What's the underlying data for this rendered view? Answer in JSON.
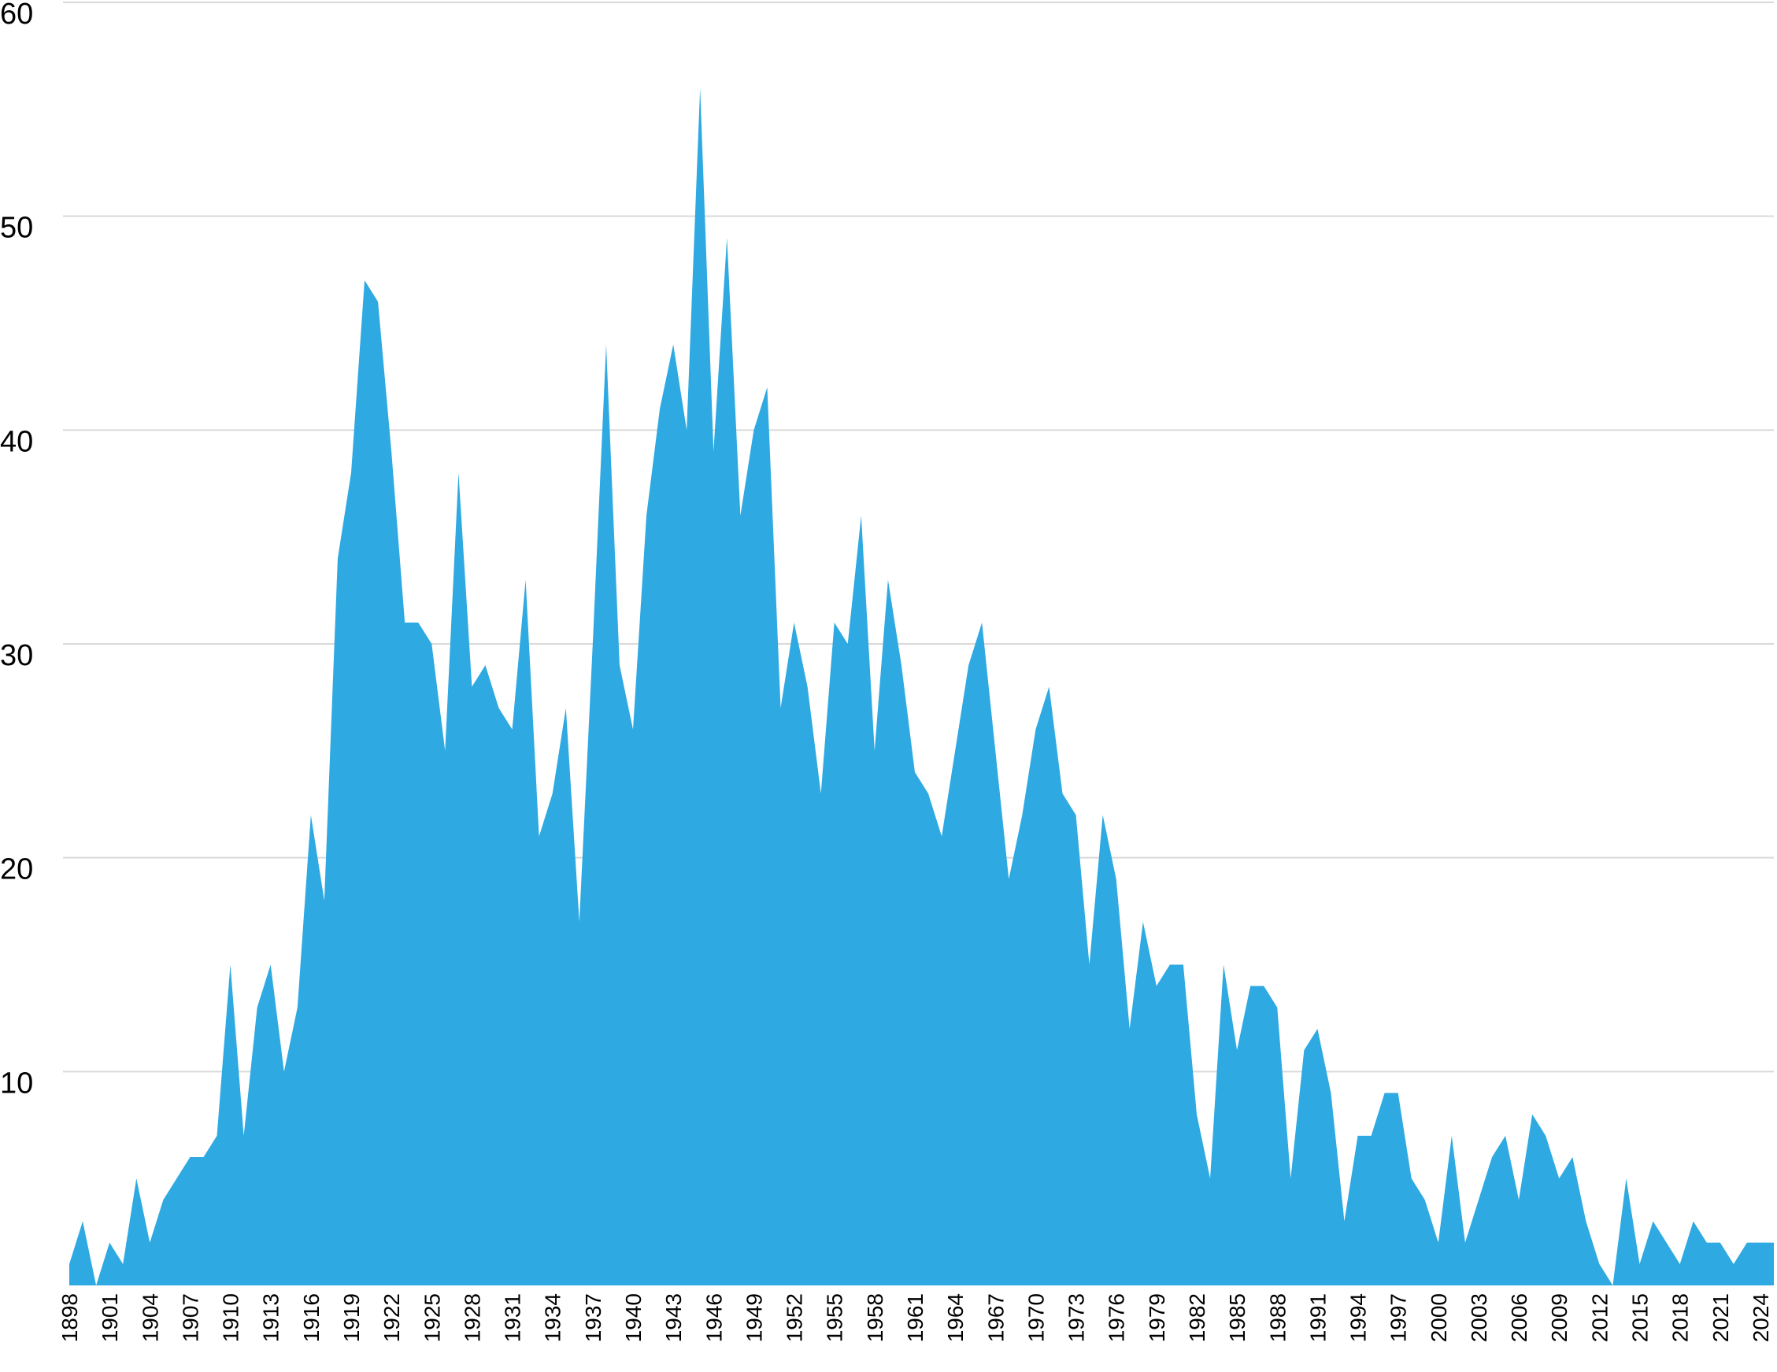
{
  "chart_data": {
    "type": "area",
    "title": "",
    "xlabel": "",
    "ylabel": "",
    "ylim": [
      0,
      60
    ],
    "yticks": [
      0,
      10,
      20,
      30,
      40,
      50,
      60
    ],
    "grid": true,
    "legend": "none",
    "color": "#2FA9E1",
    "x_tick_labels": [
      "1898",
      "1901",
      "1904",
      "1907",
      "1910",
      "1913",
      "1916",
      "1919",
      "1922",
      "1925",
      "1928",
      "1931",
      "1934",
      "1937",
      "1940",
      "1943",
      "1946",
      "1949",
      "1952",
      "1955",
      "1958",
      "1961",
      "1964",
      "1967",
      "1970",
      "1973",
      "1976",
      "1979",
      "1982",
      "1985",
      "1988",
      "1991",
      "1994",
      "1997",
      "2000",
      "2003",
      "2006",
      "2009",
      "2012",
      "2015",
      "2018",
      "2021",
      "2024"
    ],
    "x": [
      1898,
      1899,
      1900,
      1901,
      1902,
      1903,
      1904,
      1905,
      1906,
      1907,
      1908,
      1909,
      1910,
      1911,
      1912,
      1913,
      1914,
      1915,
      1916,
      1917,
      1918,
      1919,
      1920,
      1921,
      1922,
      1923,
      1924,
      1925,
      1926,
      1927,
      1928,
      1929,
      1930,
      1931,
      1932,
      1933,
      1934,
      1935,
      1936,
      1937,
      1938,
      1939,
      1940,
      1941,
      1942,
      1943,
      1944,
      1945,
      1946,
      1947,
      1948,
      1949,
      1950,
      1951,
      1952,
      1953,
      1954,
      1955,
      1956,
      1957,
      1958,
      1959,
      1960,
      1961,
      1962,
      1963,
      1964,
      1965,
      1966,
      1967,
      1968,
      1969,
      1970,
      1971,
      1972,
      1973,
      1974,
      1975,
      1976,
      1977,
      1978,
      1979,
      1980,
      1981,
      1982,
      1983,
      1984,
      1985,
      1986,
      1987,
      1988,
      1989,
      1990,
      1991,
      1992,
      1993,
      1994,
      1995,
      1996,
      1997,
      1998,
      1999,
      2000,
      2001,
      2002,
      2003,
      2004,
      2005,
      2006,
      2007,
      2008,
      2009,
      2010,
      2011,
      2012,
      2013,
      2014,
      2015,
      2016,
      2017,
      2018,
      2019,
      2020,
      2021,
      2022,
      2023,
      2024,
      2025
    ],
    "values": [
      1,
      3,
      0,
      2,
      1,
      5,
      2,
      4,
      5,
      6,
      6,
      7,
      15,
      7,
      13,
      15,
      10,
      13,
      22,
      18,
      34,
      38,
      47,
      46,
      39,
      31,
      31,
      30,
      25,
      38,
      28,
      29,
      27,
      26,
      33,
      21,
      23,
      27,
      17,
      30,
      44,
      29,
      26,
      36,
      41,
      44,
      40,
      56,
      39,
      49,
      36,
      40,
      42,
      27,
      31,
      28,
      23,
      31,
      30,
      36,
      25,
      33,
      29,
      24,
      23,
      21,
      25,
      29,
      31,
      25,
      19,
      22,
      26,
      28,
      23,
      22,
      15,
      22,
      19,
      12,
      17,
      14,
      15,
      15,
      8,
      5,
      15,
      11,
      14,
      14,
      13,
      5,
      11,
      12,
      9,
      3,
      7,
      7,
      9,
      9,
      5,
      4,
      2,
      7,
      2,
      4,
      6,
      7,
      4,
      8,
      7,
      5,
      6,
      3,
      1,
      0,
      5,
      1,
      3,
      2,
      1,
      3,
      2,
      2,
      1,
      2,
      2,
      2
    ]
  }
}
